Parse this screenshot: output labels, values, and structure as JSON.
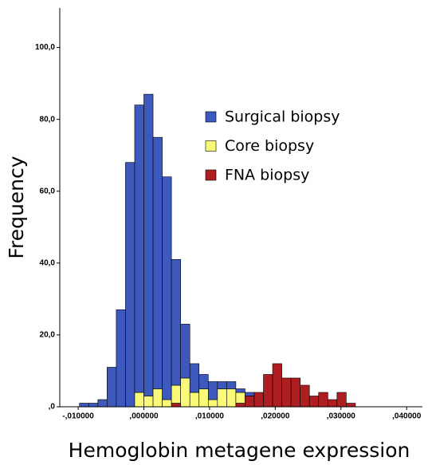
{
  "chart_data": {
    "type": "histogram",
    "x_label": "Hemoglobin metagene expression",
    "y_label": "Frequency",
    "bins": [
      -0.0098,
      -0.0084,
      -0.007,
      -0.0056,
      -0.0042,
      -0.0028,
      -0.0014,
      0,
      0.0014,
      0.0028,
      0.0042,
      0.0056,
      0.007,
      0.0084,
      0.0098,
      0.0112,
      0.0126,
      0.014,
      0.0154,
      0.0168,
      0.0182,
      0.0196,
      0.021,
      0.0224,
      0.0238,
      0.0252,
      0.0266,
      0.028,
      0.0294,
      0.0308,
      0.0322
    ],
    "series": [
      {
        "name": "Surgical biopsy",
        "color": "#3d59bd",
        "values": [
          1,
          1,
          2,
          11,
          27,
          68,
          80,
          84,
          70,
          62,
          35,
          15,
          8,
          4,
          5,
          2,
          2,
          1,
          1,
          0,
          0,
          0,
          0,
          0,
          0,
          0,
          0,
          0,
          0,
          0
        ]
      },
      {
        "name": "Core biopsy",
        "color": "#fafa78",
        "values": [
          0,
          0,
          0,
          0,
          0,
          0,
          4,
          3,
          5,
          2,
          5,
          8,
          4,
          5,
          2,
          5,
          5,
          3,
          0,
          0,
          0,
          0,
          0,
          0,
          0,
          0,
          0,
          0,
          0,
          0
        ]
      },
      {
        "name": "FNA biopsy",
        "color": "#ae1d20",
        "values": [
          0,
          0,
          0,
          0,
          0,
          0,
          0,
          0,
          0,
          0,
          1,
          0,
          0,
          0,
          0,
          0,
          0,
          1,
          3,
          4,
          9,
          12,
          8,
          8,
          6,
          3,
          4,
          2,
          4,
          1
        ]
      }
    ],
    "xlim": [
      -0.0128,
      0.0424
    ],
    "ylim": [
      0,
      111
    ],
    "xticks": [
      {
        "value": -0.01,
        "label": "-,010000"
      },
      {
        "value": 0,
        "label": ",000000"
      },
      {
        "value": 0.01,
        "label": ",010000"
      },
      {
        "value": 0.02,
        "label": ",020000"
      },
      {
        "value": 0.03,
        "label": ",030000"
      },
      {
        "value": 0.04,
        "label": ",040000"
      }
    ],
    "yticks": [
      {
        "value": 0,
        "label": ",0"
      },
      {
        "value": 20,
        "label": "20,0"
      },
      {
        "value": 40,
        "label": "40,0"
      },
      {
        "value": 60,
        "label": "60,0"
      },
      {
        "value": 80,
        "label": "80,0"
      },
      {
        "value": 100,
        "label": "100,0"
      }
    ],
    "legend": "upper right"
  }
}
